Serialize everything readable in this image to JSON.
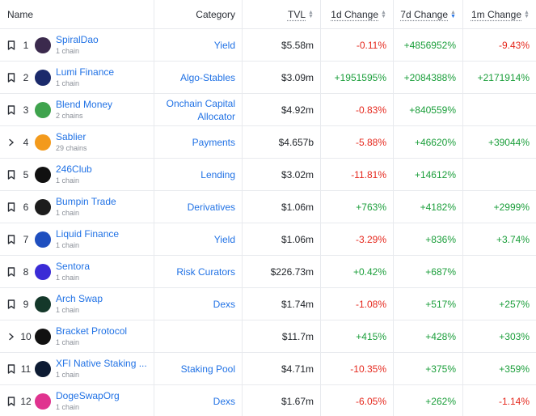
{
  "header": {
    "name": "Name",
    "category": "Category",
    "tvl": "TVL",
    "d1": "1d Change",
    "d7": "7d Change",
    "m1": "1m Change"
  },
  "colors": {
    "link": "#2172e5",
    "negative": "#e5281d",
    "positive": "#1a9e3a"
  },
  "rows": [
    {
      "lead_icon": "bookmark-icon",
      "rank": "1",
      "name": "SpiralDao",
      "chains": "1 chain",
      "category": "Yield",
      "tvl": "$5.58m",
      "d1": "-0.11%",
      "d7": "+4856952%",
      "m1": "-9.43%",
      "logo_color": "#3b2a4d"
    },
    {
      "lead_icon": "bookmark-icon",
      "rank": "2",
      "name": "Lumi Finance",
      "chains": "1 chain",
      "category": "Algo-Stables",
      "tvl": "$3.09m",
      "d1": "+1951595%",
      "d7": "+2084388%",
      "m1": "+2171914%",
      "logo_color": "#1b2a6b"
    },
    {
      "lead_icon": "bookmark-icon",
      "rank": "3",
      "name": "Blend Money",
      "chains": "2 chains",
      "category": "Onchain Capital Allocator",
      "tvl": "$4.92m",
      "d1": "-0.83%",
      "d7": "+840559%",
      "m1": "",
      "logo_color": "#3fa34d"
    },
    {
      "lead_icon": "chevron-right-icon",
      "rank": "4",
      "name": "Sablier",
      "chains": "29 chains",
      "category": "Payments",
      "tvl": "$4.657b",
      "d1": "-5.88%",
      "d7": "+46620%",
      "m1": "+39044%",
      "logo_color": "#f39a1c"
    },
    {
      "lead_icon": "bookmark-icon",
      "rank": "5",
      "name": "246Club",
      "chains": "1 chain",
      "category": "Lending",
      "tvl": "$3.02m",
      "d1": "-11.81%",
      "d7": "+14612%",
      "m1": "",
      "logo_color": "#111111"
    },
    {
      "lead_icon": "bookmark-icon",
      "rank": "6",
      "name": "Bumpin Trade",
      "chains": "1 chain",
      "category": "Derivatives",
      "tvl": "$1.06m",
      "d1": "+763%",
      "d7": "+4182%",
      "m1": "+2999%",
      "logo_color": "#1c1c1c"
    },
    {
      "lead_icon": "bookmark-icon",
      "rank": "7",
      "name": "Liquid Finance",
      "chains": "1 chain",
      "category": "Yield",
      "tvl": "$1.06m",
      "d1": "-3.29%",
      "d7": "+836%",
      "m1": "+3.74%",
      "logo_color": "#1f4fbf"
    },
    {
      "lead_icon": "bookmark-icon",
      "rank": "8",
      "name": "Sentora",
      "chains": "1 chain",
      "category": "Risk Curators",
      "tvl": "$226.73m",
      "d1": "+0.42%",
      "d7": "+687%",
      "m1": "",
      "logo_color": "#3a2bd6"
    },
    {
      "lead_icon": "bookmark-icon",
      "rank": "9",
      "name": "Arch Swap",
      "chains": "1 chain",
      "category": "Dexs",
      "tvl": "$1.74m",
      "d1": "-1.08%",
      "d7": "+517%",
      "m1": "+257%",
      "logo_color": "#14382a"
    },
    {
      "lead_icon": "chevron-right-icon",
      "rank": "10",
      "name": "Bracket Protocol",
      "chains": "1 chain",
      "category": "",
      "tvl": "$11.7m",
      "d1": "+415%",
      "d7": "+428%",
      "m1": "+303%",
      "logo_color": "#111111"
    },
    {
      "lead_icon": "bookmark-icon",
      "rank": "11",
      "name": "XFI Native Staking ...",
      "chains": "1 chain",
      "category": "Staking Pool",
      "tvl": "$4.71m",
      "d1": "-10.35%",
      "d7": "+375%",
      "m1": "+359%",
      "logo_color": "#0d1b33"
    },
    {
      "lead_icon": "bookmark-icon",
      "rank": "12",
      "name": "DogeSwapOrg",
      "chains": "1 chain",
      "category": "Dexs",
      "tvl": "$1.67m",
      "d1": "-6.05%",
      "d7": "+262%",
      "m1": "-1.14%",
      "logo_color": "#e0338f"
    }
  ]
}
